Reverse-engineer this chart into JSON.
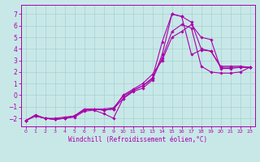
{
  "xlabel": "Windchill (Refroidissement éolien,°C)",
  "bg_color": "#c8e8e8",
  "grid_color": "#a8d0d0",
  "line_color": "#aa00aa",
  "marker_color": "#aa00aa",
  "xlim": [
    -0.5,
    23.5
  ],
  "ylim": [
    -2.7,
    7.8
  ],
  "xticks": [
    0,
    1,
    2,
    3,
    4,
    5,
    6,
    7,
    8,
    9,
    10,
    11,
    12,
    13,
    14,
    15,
    16,
    17,
    18,
    19,
    20,
    21,
    22,
    23
  ],
  "yticks": [
    -2,
    -1,
    0,
    1,
    2,
    3,
    4,
    5,
    6,
    7
  ],
  "lines": [
    {
      "x": [
        0,
        1,
        2,
        3,
        4,
        5,
        6,
        7,
        8,
        9,
        10,
        11,
        12,
        13,
        14,
        15,
        16,
        17,
        18,
        19,
        20,
        21,
        22,
        23
      ],
      "y": [
        -2.2,
        -1.8,
        -2.0,
        -2.1,
        -2.0,
        -1.8,
        -1.3,
        -1.2,
        -1.3,
        -1.2,
        -0.3,
        0.3,
        0.6,
        1.3,
        3.5,
        7.0,
        6.8,
        3.5,
        3.9,
        3.8,
        2.4,
        2.4,
        2.4,
        2.4
      ]
    },
    {
      "x": [
        0,
        1,
        2,
        3,
        4,
        5,
        6,
        7,
        8,
        9,
        10,
        11,
        12,
        13,
        14,
        15,
        16,
        17,
        18,
        19,
        20,
        21,
        22,
        23
      ],
      "y": [
        -2.2,
        -1.8,
        -2.0,
        -2.1,
        -2.0,
        -1.9,
        -1.4,
        -1.3,
        -1.6,
        -2.0,
        -0.3,
        0.4,
        0.8,
        1.5,
        4.6,
        7.0,
        6.8,
        6.3,
        4.0,
        3.8,
        2.5,
        2.5,
        2.5,
        2.4
      ]
    },
    {
      "x": [
        0,
        1,
        2,
        3,
        4,
        5,
        6,
        7,
        8,
        9,
        10,
        11,
        12,
        13,
        14,
        15,
        16,
        17,
        18,
        19,
        20,
        21,
        22,
        23
      ],
      "y": [
        -2.2,
        -1.7,
        -2.0,
        -2.1,
        -2.0,
        -1.8,
        -1.2,
        -1.2,
        -1.3,
        -1.2,
        0.0,
        0.5,
        1.0,
        1.8,
        3.0,
        5.0,
        5.5,
        6.1,
        5.0,
        4.8,
        2.3,
        2.3,
        2.4,
        2.4
      ]
    },
    {
      "x": [
        0,
        1,
        2,
        3,
        4,
        5,
        6,
        7,
        8,
        9,
        10,
        11,
        12,
        13,
        14,
        15,
        16,
        17,
        18,
        19,
        20,
        21,
        22,
        23
      ],
      "y": [
        -2.2,
        -1.8,
        -2.0,
        -2.0,
        -1.9,
        -1.8,
        -1.3,
        -1.2,
        -1.2,
        -1.1,
        -0.1,
        0.4,
        0.8,
        1.4,
        3.2,
        5.5,
        6.1,
        5.8,
        2.5,
        2.0,
        1.9,
        1.9,
        2.0,
        2.4
      ]
    }
  ],
  "xlabel_fontsize": 5.5,
  "tick_fontsize_x": 4.5,
  "tick_fontsize_y": 5.5
}
